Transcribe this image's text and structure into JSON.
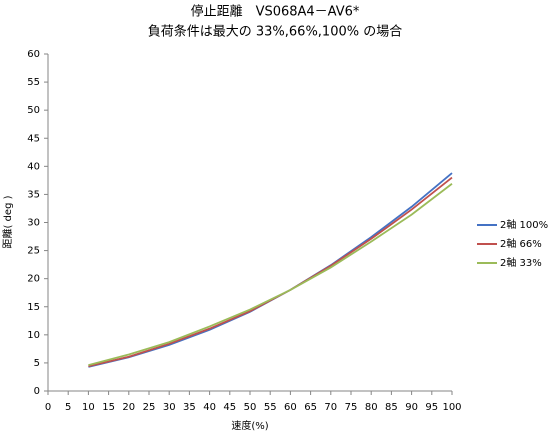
{
  "chart_data": {
    "type": "line",
    "title": "停止距離　VS068A4－AV6*",
    "subtitle": "負荷条件は最大の 33%,66%,100% の場合",
    "x_label": "速度(%)",
    "y_label": "距離( deg )",
    "x": [
      10,
      20,
      30,
      40,
      50,
      60,
      70,
      80,
      90,
      100
    ],
    "series": [
      {
        "name": "2軸 100%",
        "color": "#4472c4",
        "values": [
          4.3,
          6.0,
          8.2,
          10.9,
          14.1,
          18.0,
          22.4,
          27.4,
          32.8,
          38.8
        ]
      },
      {
        "name": "2軸 66%",
        "color": "#c0504d",
        "values": [
          4.4,
          6.1,
          8.4,
          11.1,
          14.2,
          18.0,
          22.3,
          27.1,
          32.3,
          38.0
        ]
      },
      {
        "name": "2軸 33%",
        "color": "#9bbb59",
        "values": [
          4.6,
          6.5,
          8.7,
          11.5,
          14.5,
          18.0,
          22.0,
          26.6,
          31.4,
          36.9
        ]
      }
    ],
    "xlim": [
      0,
      100
    ],
    "xticks": [
      0,
      5,
      10,
      15,
      20,
      25,
      30,
      35,
      40,
      45,
      50,
      55,
      60,
      65,
      70,
      75,
      80,
      85,
      90,
      95,
      100
    ],
    "ylim": [
      0,
      60
    ],
    "yticks": [
      0,
      5,
      10,
      15,
      20,
      25,
      30,
      35,
      40,
      45,
      50,
      55,
      60
    ],
    "grid": false,
    "legend": "right"
  }
}
